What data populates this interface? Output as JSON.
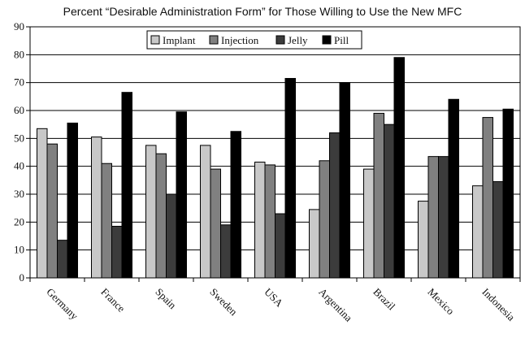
{
  "chart_data": {
    "type": "bar",
    "title": "Percent “Desirable Administration Form” for Those Willing to Use the New MFC",
    "categories": [
      "Germany",
      "France",
      "Spain",
      "Sweden",
      "USA",
      "Argentina",
      "Brazil",
      "Mexico",
      "Indonesia"
    ],
    "series": [
      {
        "name": "Implant",
        "color": "#c8c8c8",
        "values": [
          53.5,
          50.5,
          47.5,
          47.5,
          41.5,
          24.5,
          39,
          27.5,
          33
        ]
      },
      {
        "name": "Injection",
        "color": "#808080",
        "values": [
          48,
          41,
          44.5,
          39,
          40.5,
          42,
          59,
          43.5,
          57.5
        ]
      },
      {
        "name": "Jelly",
        "color": "#3c3c3c",
        "values": [
          13.5,
          18.5,
          30,
          19,
          23,
          52,
          55,
          43.5,
          34.5
        ]
      },
      {
        "name": "Pill",
        "color": "#000000",
        "values": [
          55.5,
          66.5,
          59.5,
          52.5,
          71.5,
          70,
          79,
          64,
          60.5
        ]
      }
    ],
    "ylim": [
      0,
      90
    ],
    "yticks": [
      0,
      10,
      20,
      30,
      40,
      50,
      60,
      70,
      80,
      90
    ],
    "grid": true,
    "legend_position": "top-center"
  }
}
